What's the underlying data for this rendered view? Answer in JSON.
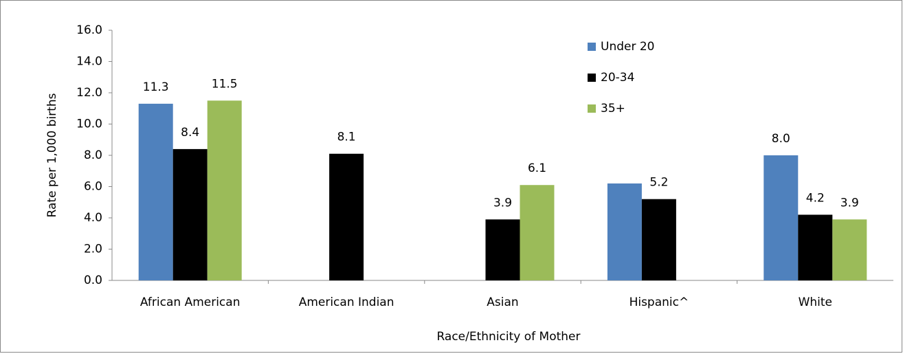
{
  "chart_data": {
    "type": "bar",
    "x_label": "Race/Ethnicity of Mother",
    "y_label": "Rate per 1,000 births",
    "categories": [
      "African American",
      "American Indian",
      "Asian",
      "Hispanic^",
      "White"
    ],
    "series": [
      {
        "name": "Under 20",
        "color": "#4f81bd",
        "values": [
          11.3,
          null,
          null,
          6.2,
          8.0
        ],
        "value_labels": [
          "11.3",
          null,
          null,
          null,
          "8.0"
        ]
      },
      {
        "name": "20-34",
        "color": "#000000",
        "values": [
          8.4,
          8.1,
          3.9,
          5.2,
          4.2
        ],
        "value_labels": [
          "8.4",
          "8.1",
          "3.9",
          "5.2",
          "4.2"
        ]
      },
      {
        "name": "35+",
        "color": "#9bbb59",
        "values": [
          11.5,
          null,
          6.1,
          null,
          3.9
        ],
        "value_labels": [
          "11.5",
          null,
          "6.1",
          null,
          "3.9"
        ]
      }
    ],
    "ylim": [
      0,
      16
    ],
    "yticks": [
      {
        "value": 0,
        "label": "0.0"
      },
      {
        "value": 2,
        "label": "2.0"
      },
      {
        "value": 4,
        "label": "4.0"
      },
      {
        "value": 6,
        "label": "6.0"
      },
      {
        "value": 8,
        "label": "8.0"
      },
      {
        "value": 10,
        "label": "10.0"
      },
      {
        "value": 12,
        "label": "12.0"
      },
      {
        "value": 14,
        "label": "14.0"
      },
      {
        "value": 16,
        "label": "16.0"
      }
    ],
    "grid": false,
    "legend": "top-right"
  }
}
